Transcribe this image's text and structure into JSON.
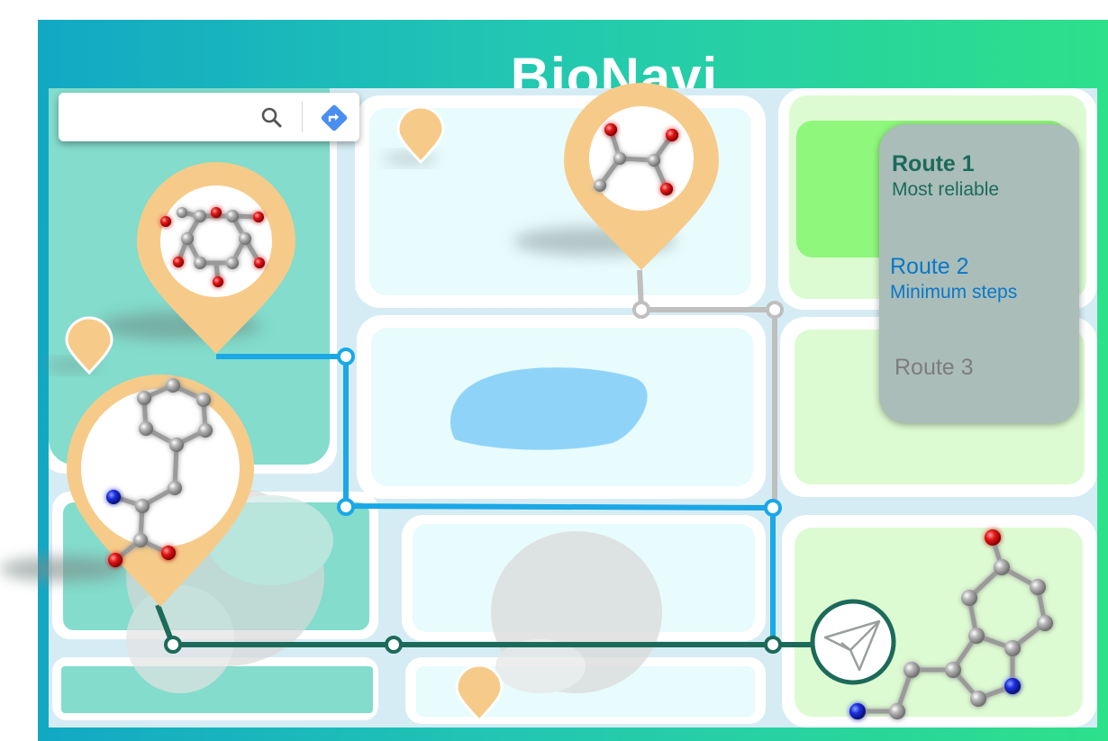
{
  "app": {
    "title": "BioNavi"
  },
  "search": {
    "placeholder": ""
  },
  "routes": [
    {
      "title": "Route 1",
      "subtitle": "Most reliable",
      "color": "#1c6a5a"
    },
    {
      "title": "Route 2",
      "subtitle": "Minimum steps",
      "color": "#0a78c8"
    },
    {
      "title": "Route 3",
      "subtitle": "",
      "color": "#7d7d7d"
    }
  ],
  "icons": [
    "search-icon",
    "directions-icon",
    "send-icon"
  ],
  "colors": {
    "pin": "#f6cb8a",
    "route1": "#1c6a5a",
    "route2": "#1aa8e6",
    "route3": "#bfbfbf",
    "water": "#8fd4f8"
  }
}
